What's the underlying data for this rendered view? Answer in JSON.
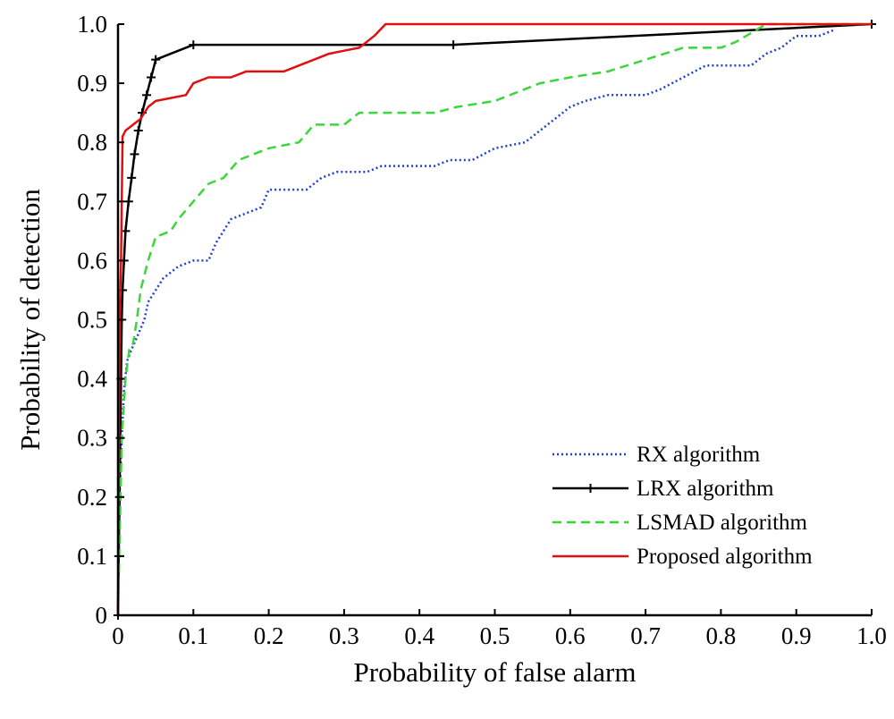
{
  "chart_data": {
    "type": "line",
    "title": "",
    "xlabel": "Probability of false alarm",
    "ylabel": "Probability of detection",
    "xlim": [
      0,
      1
    ],
    "ylim": [
      0,
      1
    ],
    "xticks": [
      "0",
      "0.1",
      "0.2",
      "0.3",
      "0.4",
      "0.5",
      "0.6",
      "0.7",
      "0.8",
      "0.9",
      "1.0"
    ],
    "yticks": [
      "0",
      "0.1",
      "0.2",
      "0.3",
      "0.4",
      "0.5",
      "0.6",
      "0.7",
      "0.8",
      "0.9",
      "1.0"
    ],
    "grid": false,
    "legend_position": "bottom-right",
    "series": [
      {
        "name": "RX algorithm",
        "color": "#1f3fd8",
        "style": "dotted",
        "points": [
          [
            0,
            0
          ],
          [
            0.002,
            0.2
          ],
          [
            0.005,
            0.3
          ],
          [
            0.008,
            0.38
          ],
          [
            0.012,
            0.43
          ],
          [
            0.018,
            0.45
          ],
          [
            0.025,
            0.47
          ],
          [
            0.035,
            0.5
          ],
          [
            0.04,
            0.53
          ],
          [
            0.05,
            0.55
          ],
          [
            0.06,
            0.57
          ],
          [
            0.07,
            0.58
          ],
          [
            0.08,
            0.59
          ],
          [
            0.1,
            0.6
          ],
          [
            0.12,
            0.6
          ],
          [
            0.13,
            0.63
          ],
          [
            0.15,
            0.67
          ],
          [
            0.17,
            0.68
          ],
          [
            0.19,
            0.69
          ],
          [
            0.2,
            0.72
          ],
          [
            0.25,
            0.72
          ],
          [
            0.27,
            0.74
          ],
          [
            0.29,
            0.75
          ],
          [
            0.33,
            0.75
          ],
          [
            0.35,
            0.76
          ],
          [
            0.42,
            0.76
          ],
          [
            0.44,
            0.77
          ],
          [
            0.47,
            0.77
          ],
          [
            0.5,
            0.79
          ],
          [
            0.54,
            0.8
          ],
          [
            0.56,
            0.82
          ],
          [
            0.6,
            0.86
          ],
          [
            0.62,
            0.87
          ],
          [
            0.65,
            0.88
          ],
          [
            0.7,
            0.88
          ],
          [
            0.72,
            0.89
          ],
          [
            0.75,
            0.91
          ],
          [
            0.78,
            0.93
          ],
          [
            0.84,
            0.93
          ],
          [
            0.86,
            0.95
          ],
          [
            0.88,
            0.96
          ],
          [
            0.9,
            0.98
          ],
          [
            0.93,
            0.98
          ],
          [
            0.95,
            0.99
          ]
        ]
      },
      {
        "name": "LRX algorithm",
        "color": "#000000",
        "style": "solid-plus",
        "points": [
          [
            0,
            0
          ],
          [
            0.001,
            0.1
          ],
          [
            0.002,
            0.2
          ],
          [
            0.003,
            0.3
          ],
          [
            0.004,
            0.4
          ],
          [
            0.005,
            0.5
          ],
          [
            0.006,
            0.55
          ],
          [
            0.008,
            0.6
          ],
          [
            0.01,
            0.65
          ],
          [
            0.014,
            0.7
          ],
          [
            0.018,
            0.74
          ],
          [
            0.022,
            0.78
          ],
          [
            0.027,
            0.82
          ],
          [
            0.032,
            0.85
          ],
          [
            0.038,
            0.88
          ],
          [
            0.044,
            0.91
          ],
          [
            0.05,
            0.94
          ],
          [
            0.1,
            0.965
          ],
          [
            0.445,
            0.965
          ],
          [
            1.0,
            1.0
          ]
        ]
      },
      {
        "name": "LSMAD algorithm",
        "color": "#3ad63a",
        "style": "dashed",
        "points": [
          [
            0,
            0
          ],
          [
            0.005,
            0.3
          ],
          [
            0.01,
            0.4
          ],
          [
            0.015,
            0.45
          ],
          [
            0.02,
            0.46
          ],
          [
            0.025,
            0.5
          ],
          [
            0.03,
            0.55
          ],
          [
            0.04,
            0.6
          ],
          [
            0.05,
            0.64
          ],
          [
            0.07,
            0.65
          ],
          [
            0.08,
            0.67
          ],
          [
            0.1,
            0.7
          ],
          [
            0.12,
            0.73
          ],
          [
            0.14,
            0.74
          ],
          [
            0.16,
            0.77
          ],
          [
            0.18,
            0.78
          ],
          [
            0.2,
            0.79
          ],
          [
            0.24,
            0.8
          ],
          [
            0.26,
            0.83
          ],
          [
            0.3,
            0.83
          ],
          [
            0.32,
            0.85
          ],
          [
            0.42,
            0.85
          ],
          [
            0.45,
            0.86
          ],
          [
            0.5,
            0.87
          ],
          [
            0.54,
            0.89
          ],
          [
            0.56,
            0.9
          ],
          [
            0.6,
            0.91
          ],
          [
            0.65,
            0.92
          ],
          [
            0.7,
            0.94
          ],
          [
            0.75,
            0.96
          ],
          [
            0.8,
            0.96
          ],
          [
            0.82,
            0.97
          ],
          [
            0.86,
            1.0
          ],
          [
            1.0,
            1.0
          ]
        ]
      },
      {
        "name": "Proposed algorithm",
        "color": "#e01010",
        "style": "solid",
        "points": [
          [
            0,
            0
          ],
          [
            0.002,
            0.5
          ],
          [
            0.004,
            0.6
          ],
          [
            0.005,
            0.7
          ],
          [
            0.006,
            0.81
          ],
          [
            0.01,
            0.82
          ],
          [
            0.02,
            0.83
          ],
          [
            0.03,
            0.84
          ],
          [
            0.04,
            0.86
          ],
          [
            0.05,
            0.87
          ],
          [
            0.07,
            0.875
          ],
          [
            0.09,
            0.88
          ],
          [
            0.1,
            0.9
          ],
          [
            0.12,
            0.91
          ],
          [
            0.15,
            0.91
          ],
          [
            0.17,
            0.92
          ],
          [
            0.22,
            0.92
          ],
          [
            0.24,
            0.93
          ],
          [
            0.26,
            0.94
          ],
          [
            0.28,
            0.95
          ],
          [
            0.3,
            0.955
          ],
          [
            0.32,
            0.96
          ],
          [
            0.33,
            0.97
          ],
          [
            0.34,
            0.98
          ],
          [
            0.355,
            1.0
          ],
          [
            1.0,
            1.0
          ]
        ]
      }
    ]
  }
}
